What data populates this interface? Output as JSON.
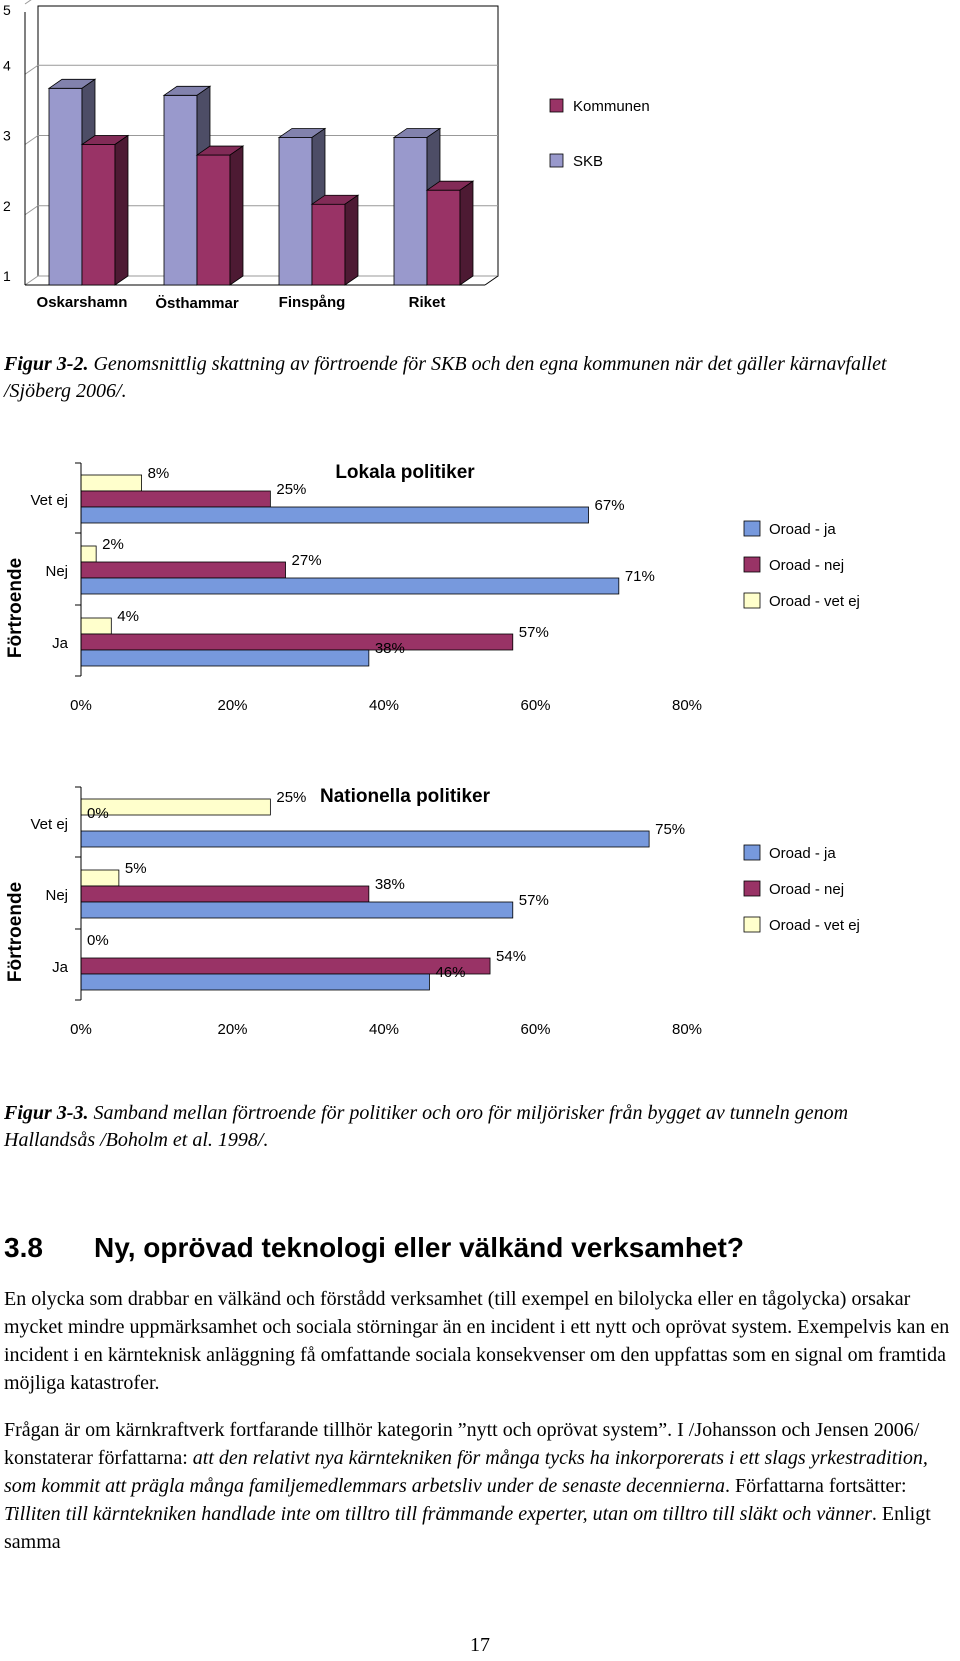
{
  "chart_data": [
    {
      "type": "bar",
      "categories": [
        "Oskarshamn",
        "Östhammar",
        "Finspång",
        "Riket"
      ],
      "series": [
        {
          "name": "SKB",
          "values": [
            3.8,
            3.7,
            3.1,
            3.1
          ],
          "color": "#9999cc"
        },
        {
          "name": "Kommunen",
          "values": [
            3.0,
            2.85,
            2.15,
            2.35
          ],
          "color": "#993366"
        }
      ],
      "ylim": [
        1,
        5
      ],
      "yticks": [
        "1",
        "2",
        "3",
        "4",
        "5"
      ],
      "grid": true,
      "legend": "right",
      "legend_entries": [
        "Kommunen",
        "SKB"
      ]
    },
    {
      "type": "bar",
      "orientation": "horizontal",
      "title": "Lokala politiker",
      "ylabel": "Förtroende",
      "categories": [
        "Vet ej",
        "Nej",
        "Ja"
      ],
      "series": [
        {
          "name": "Oroad - vet ej",
          "values": [
            8,
            2,
            4
          ],
          "labels": [
            "8%",
            "2%",
            "4%"
          ],
          "color": "#ffffcc"
        },
        {
          "name": "Oroad - nej",
          "values": [
            25,
            27,
            57
          ],
          "labels": [
            "25%",
            "27%",
            "57%"
          ],
          "color": "#993366"
        },
        {
          "name": "Oroad - ja",
          "values": [
            67,
            71,
            38
          ],
          "labels": [
            "67%",
            "71%",
            "38%"
          ],
          "color": "#7799dd"
        }
      ],
      "xlim": [
        0,
        80
      ],
      "xticks": [
        "0%",
        "20%",
        "40%",
        "60%",
        "80%"
      ],
      "legend": "right",
      "legend_entries": [
        "Oroad - ja",
        "Oroad - nej",
        "Oroad - vet ej"
      ]
    },
    {
      "type": "bar",
      "orientation": "horizontal",
      "title": "Nationella politiker",
      "ylabel": "Förtroende",
      "categories": [
        "Vet ej",
        "Nej",
        "Ja"
      ],
      "series": [
        {
          "name": "Oroad - vet ej",
          "values": [
            25,
            5,
            0
          ],
          "labels": [
            "25%",
            "5%",
            "0%"
          ],
          "color": "#ffffcc"
        },
        {
          "name": "Oroad - nej",
          "values": [
            0,
            38,
            54
          ],
          "labels": [
            "0%",
            "38%",
            "54%"
          ],
          "color": "#993366"
        },
        {
          "name": "Oroad - ja",
          "values": [
            75,
            57,
            46
          ],
          "labels": [
            "75%",
            "57%",
            "46%"
          ],
          "color": "#7799dd"
        }
      ],
      "xlim": [
        0,
        80
      ],
      "xticks": [
        "0%",
        "20%",
        "40%",
        "60%",
        "80%"
      ],
      "legend": "right",
      "legend_entries": [
        "Oroad - ja",
        "Oroad - nej",
        "Oroad - vet ej"
      ]
    }
  ],
  "captions": {
    "fig32_label": "Figur 3-2.",
    "fig32_text": "Genomsnittlig skattning av förtroende för SKB och den egna kommunen när det gäller kärnavfallet /Sjöberg 2006/.",
    "fig33_label": "Figur 3-3.",
    "fig33_text": "Samband mellan förtroende för politiker och oro för miljörisker från bygget av tunneln genom Hallandsås /Boholm et al. 1998/."
  },
  "section": {
    "number": "3.8",
    "title": "Ny, oprövad teknologi eller välkänd verksamhet?"
  },
  "paragraphs": {
    "p1": "En olycka som drabbar en välkänd och förstådd verksamhet (till exempel en bilolycka eller en tågolycka) orsakar mycket mindre uppmärksamhet och sociala störningar än en incident i ett nytt och oprövat system. Exempelvis kan en incident i en kärnteknisk anläggning få omfattande sociala konsekvenser om den uppfattas som en signal om framtida möjliga katastrofer.",
    "p2_a": "Frågan är om kärnkraftverk fortfarande tillhör kategorin ”nytt och oprövat system”. I /Johansson och Jensen 2006/ konstaterar författarna: ",
    "p2_b": "att den relativt nya kärntekniken för många tycks ha inkorporerats i ett slags yrkestradition, som kommit att prägla många familjemedlemmars arbetsliv under de senaste decennierna",
    "p2_c": ". Författarna fortsätter: ",
    "p2_d": "Tilliten till kärntekniken handlade inte om tilltro till främmande experter, utan om tilltro till släkt och vänner",
    "p2_e": ". Enligt samma"
  },
  "page_number": "17"
}
